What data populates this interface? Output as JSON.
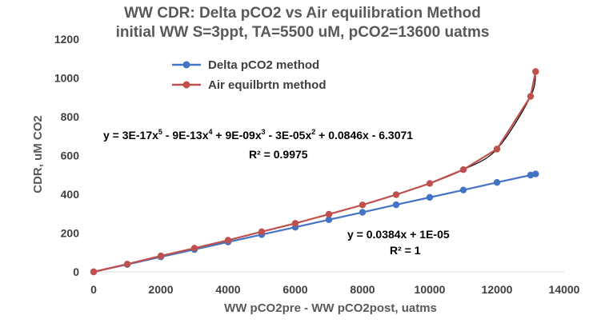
{
  "chart_data": {
    "type": "line",
    "title": "WW CDR: Delta pCO2 vs Air equilibration Method",
    "subtitle": "initial WW S=3ppt, TA=5500 uM, pCO2=13600 uatms",
    "xlabel": "WW pCO2pre - WW pCO2post, uatms",
    "ylabel": "CDR, uM CO2",
    "xlim": [
      0,
      14000
    ],
    "ylim": [
      0,
      1200
    ],
    "x_ticks": [
      "0",
      "2000",
      "4000",
      "6000",
      "8000",
      "10000",
      "12000",
      "14000"
    ],
    "y_ticks": [
      "0",
      "200",
      "400",
      "600",
      "800",
      "1000",
      "1200"
    ],
    "grid": false,
    "legend_position": "top-left",
    "series": [
      {
        "name": "Delta pCO2 method",
        "color": "#4472c4",
        "x": [
          0,
          1000,
          2000,
          3000,
          4000,
          5000,
          6000,
          7000,
          8000,
          9000,
          10000,
          11000,
          12000,
          13000,
          13150
        ],
        "y": [
          0,
          38,
          77,
          115,
          154,
          192,
          230,
          269,
          307,
          346,
          384,
          422,
          461,
          499,
          505
        ]
      },
      {
        "name": "Air equilbrtn method",
        "color": "#c0504d",
        "x": [
          0,
          1000,
          2000,
          3000,
          4000,
          5000,
          6000,
          7000,
          8000,
          9000,
          10000,
          11000,
          12000,
          13000,
          13150
        ],
        "y": [
          0,
          40,
          82,
          122,
          163,
          207,
          250,
          297,
          345,
          398,
          456,
          527,
          633,
          905,
          1033
        ]
      }
    ],
    "annotations": {
      "poly_fit_prefix": "y = 3E-17x",
      "poly_fit_exp5": "5",
      "poly_fit_mid1": " - 9E-13x",
      "poly_fit_exp4": "4",
      "poly_fit_mid2": " + 9E-09x",
      "poly_fit_exp3": "3",
      "poly_fit_mid3": " - 3E-05x",
      "poly_fit_exp2": "2",
      "poly_fit_suffix": " + 0.0846x - 6.3071",
      "poly_r2": "R² = 0.9975",
      "linear_fit": "y = 0.0384x + 1E-05",
      "linear_r2": "R² = 1"
    },
    "trendlines": [
      {
        "series": "Air equilbrtn method",
        "kind": "polynomial",
        "order": 5,
        "color": "#000000"
      },
      {
        "series": "Delta pCO2 method",
        "kind": "linear",
        "color": "#000000"
      }
    ]
  }
}
